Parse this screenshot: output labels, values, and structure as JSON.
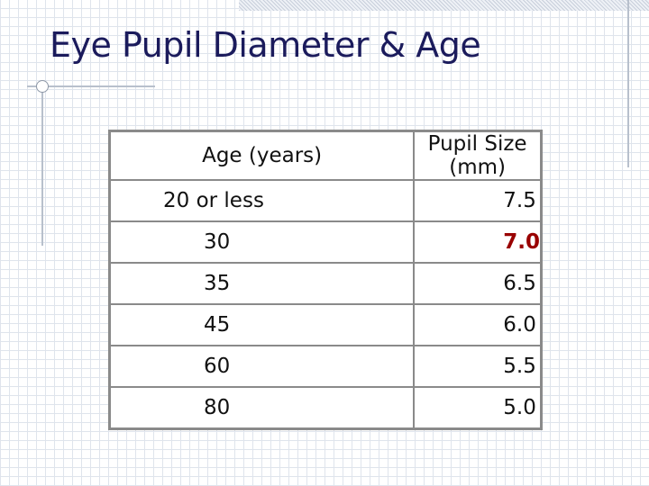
{
  "header": {
    "title": "Eye Pupil Diameter & Age"
  },
  "table": {
    "columns": [
      "Age (years)",
      "Pupil Size (mm)"
    ],
    "rows": [
      [
        "20 or less",
        "7.5"
      ],
      [
        "30",
        "7.0"
      ],
      [
        "35",
        "6.5"
      ],
      [
        "45",
        "6.0"
      ],
      [
        "60",
        "5.5"
      ],
      [
        "80",
        "5.0"
      ]
    ]
  }
}
